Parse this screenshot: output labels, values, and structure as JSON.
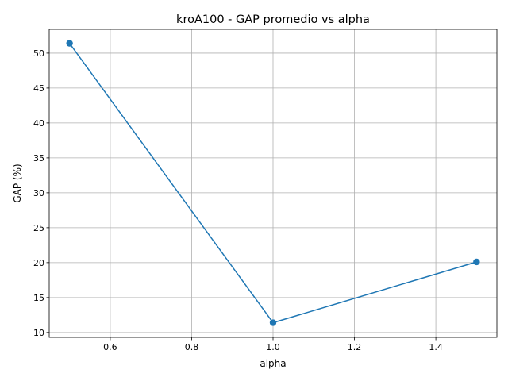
{
  "chart_data": {
    "type": "line",
    "title": "kroA100 - GAP promedio vs alpha",
    "xlabel": "alpha",
    "ylabel": "GAP (%)",
    "xlim": [
      0.45,
      1.55
    ],
    "ylim": [
      9.3,
      53.4
    ],
    "xticks": [
      0.6,
      0.8,
      1.0,
      1.2,
      1.4
    ],
    "xtick_labels": [
      "0.6",
      "0.8",
      "1.0",
      "1.2",
      "1.4"
    ],
    "yticks": [
      10,
      15,
      20,
      25,
      30,
      35,
      40,
      45,
      50
    ],
    "ytick_labels": [
      "10",
      "15",
      "20",
      "25",
      "30",
      "35",
      "40",
      "45",
      "50"
    ],
    "grid": true,
    "legend": "none",
    "series": [
      {
        "color": "#1f77b4",
        "marker": "circle",
        "x": [
          0.5,
          1.0,
          1.5
        ],
        "y": [
          51.4,
          11.4,
          20.1
        ]
      }
    ]
  }
}
